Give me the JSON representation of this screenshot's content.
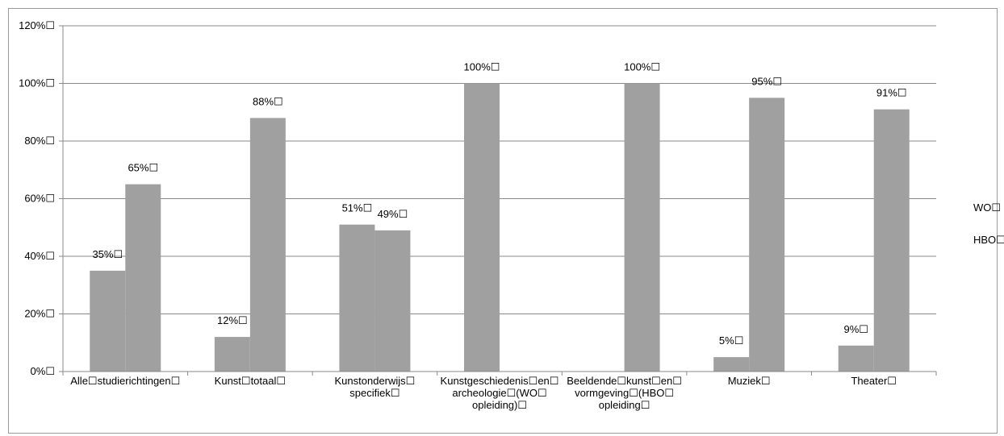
{
  "chart_data": {
    "type": "bar",
    "categories": [
      [
        "Alle☐studierichtingen☐"
      ],
      [
        "Kunst☐totaal☐"
      ],
      [
        "Kunstonderwijs☐",
        "specifiek☐"
      ],
      [
        "Kunstgeschiedenis☐en☐",
        "archeologie☐(WO☐",
        "opleiding)☐"
      ],
      [
        "Beeldende☐kunst☐en☐",
        "vormgeving☐(HBO☐",
        "opleiding☐"
      ],
      [
        "Muziek☐"
      ],
      [
        "Theater☐"
      ]
    ],
    "series": [
      {
        "name": "WO☐",
        "values": [
          35,
          12,
          51,
          100,
          null,
          5,
          9
        ]
      },
      {
        "name": "HBO☐",
        "values": [
          65,
          88,
          49,
          null,
          100,
          95,
          91
        ]
      }
    ],
    "data_labels": [
      [
        "35%☐",
        "12%☐",
        "51%☐",
        "100%☐",
        null,
        "5%☐",
        "9%☐"
      ],
      [
        "65%☐",
        "88%☐",
        "49%☐",
        null,
        "100%☐",
        "95%☐",
        "91%☐"
      ]
    ],
    "yticks": [
      "0%☐",
      "20%☐",
      "40%☐",
      "60%☐",
      "80%☐",
      "100%☐",
      "120%☐"
    ],
    "ylim": [
      0,
      120
    ],
    "grid": true,
    "legend_position": "right",
    "bar_color": "#a0a0a0",
    "title": "",
    "xlabel": "",
    "ylabel": ""
  }
}
